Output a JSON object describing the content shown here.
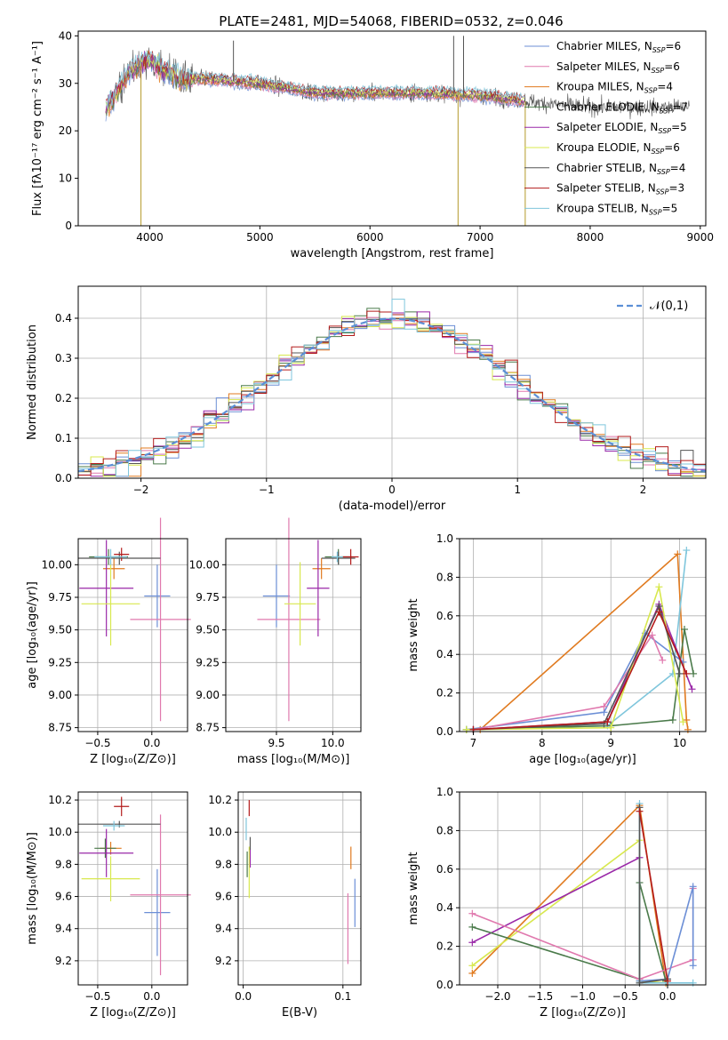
{
  "figure_title": "PLATE=2481, MJD=54068, FIBERID=0532, z=0.046",
  "colors": {
    "cmiles": "#6c8fd6",
    "smiles": "#e079ae",
    "kmiles": "#e07a1f",
    "celodie": "#4a7a4a",
    "selodie": "#9a28a8",
    "kelodie": "#d8e84e",
    "cstelib": "#555555",
    "sstelib": "#b31b1b",
    "kstelib": "#7fc6dc",
    "normal": "#5b8fd6"
  },
  "chart_data": [
    {
      "id": "spectrum",
      "type": "line",
      "xlabel": "wavelength [Angstrom, rest frame]",
      "ylabel": "Flux [fλ10⁻¹⁷ erg cm⁻² s⁻¹ A⁻¹]",
      "xlim": [
        3350,
        9050
      ],
      "ylim": [
        0,
        41
      ],
      "xticks": [
        4000,
        5000,
        6000,
        7000,
        8000,
        9000
      ],
      "yticks": [
        0,
        10,
        20,
        30,
        40
      ],
      "grid": false,
      "legend_position": "upper-right",
      "legend": [
        {
          "label": "Chabrier MILES, N",
          "sub": "SSP",
          "n": "=6",
          "color_key": "cmiles"
        },
        {
          "label": "Salpeter MILES, N",
          "sub": "SSP",
          "n": "=6",
          "color_key": "smiles"
        },
        {
          "label": "Kroupa MILES, N",
          "sub": "SSP",
          "n": "=4",
          "color_key": "kmiles"
        },
        {
          "label": "Chabrier ELODIE, N",
          "sub": "SSP",
          "n": "=7",
          "color_key": "celodie"
        },
        {
          "label": "Salpeter ELODIE, N",
          "sub": "SSP",
          "n": "=5",
          "color_key": "selodie"
        },
        {
          "label": "Kroupa ELODIE, N",
          "sub": "SSP",
          "n": "=6",
          "color_key": "kelodie"
        },
        {
          "label": "Chabrier STELIB, N",
          "sub": "SSP",
          "n": "=4",
          "color_key": "cstelib"
        },
        {
          "label": "Salpeter STELIB, N",
          "sub": "SSP",
          "n": "=3",
          "color_key": "sstelib"
        },
        {
          "label": "Kroupa STELIB, N",
          "sub": "SSP",
          "n": "=5",
          "color_key": "kstelib"
        }
      ],
      "continuum": {
        "wavelength": [
          3620,
          3700,
          3800,
          3900,
          4000,
          4100,
          4300,
          4500,
          5000,
          5500,
          6000,
          6500,
          7000,
          7500,
          8000,
          8500,
          8900
        ],
        "flux": [
          25,
          28,
          32,
          34,
          35,
          33,
          31,
          31,
          30,
          28,
          28,
          28,
          27.5,
          26,
          25,
          25,
          25
        ]
      },
      "model_range": [
        3600,
        7400
      ],
      "spikes": [
        {
          "x": 3920,
          "y": 0
        },
        {
          "x": 6800,
          "y": 0
        },
        {
          "x": 7410,
          "y": 0
        },
        {
          "x": 4760,
          "y": 39
        },
        {
          "x": 6760,
          "y": 40
        },
        {
          "x": 6850,
          "y": 40
        }
      ]
    },
    {
      "id": "residual_hist",
      "type": "histogram",
      "xlabel": "(data-model)/error",
      "ylabel": "Normed distribution",
      "xlim": [
        -2.5,
        2.5
      ],
      "ylim": [
        0,
        0.48
      ],
      "xticks": [
        -2,
        -1,
        0,
        1,
        2
      ],
      "yticks": [
        0,
        0.1,
        0.2,
        0.3,
        0.4
      ],
      "grid": true,
      "bin_width": 0.1,
      "legend": "𝒩(0,1)",
      "legend_position": "upper-right"
    },
    {
      "id": "age_Z",
      "type": "errorbar",
      "xlabel": "Z [log₁₀(Z/Z⊙)]",
      "ylabel": "age  [log₁₀(age/yr)]",
      "xlim": [
        -0.68,
        0.33
      ],
      "ylim": [
        8.72,
        10.2
      ],
      "xticks": [
        -0.5,
        0.0
      ],
      "yticks": [
        8.75,
        9.0,
        9.25,
        9.5,
        9.75,
        10.0
      ],
      "grid": true,
      "points": [
        {
          "color_key": "cmiles",
          "x": 0.05,
          "xerr": 0.12,
          "y": 9.76,
          "yerr": 0.24
        },
        {
          "color_key": "smiles",
          "x": 0.08,
          "xerr": 0.28,
          "y": 9.58,
          "yerr": 0.78
        },
        {
          "color_key": "kmiles",
          "x": -0.35,
          "xerr": 0.1,
          "y": 9.97,
          "yerr": 0.08
        },
        {
          "color_key": "celodie",
          "x": -0.4,
          "xerr": 0.18,
          "y": 10.06,
          "yerr": 0.06
        },
        {
          "color_key": "selodie",
          "x": -0.42,
          "xerr": 0.25,
          "y": 9.82,
          "yerr": 0.37
        },
        {
          "color_key": "kelodie",
          "x": -0.38,
          "xerr": 0.27,
          "y": 9.7,
          "yerr": 0.32
        },
        {
          "color_key": "cstelib",
          "x": -0.3,
          "xerr": 0.38,
          "y": 10.05,
          "yerr": 0.05
        },
        {
          "color_key": "sstelib",
          "x": -0.28,
          "xerr": 0.07,
          "y": 10.08,
          "yerr": 0.05
        },
        {
          "color_key": "kstelib",
          "x": -0.38,
          "xerr": 0.15,
          "y": 10.06,
          "yerr": 0.06
        }
      ]
    },
    {
      "id": "age_mass",
      "type": "errorbar",
      "xlabel": "mass [log₁₀(M/M⊙)]",
      "ylabel": "",
      "xlim": [
        9.05,
        10.25
      ],
      "ylim": [
        8.72,
        10.2
      ],
      "xticks": [
        9.5,
        10.0
      ],
      "yticks": [
        8.75,
        9.0,
        9.25,
        9.5,
        9.75,
        10.0
      ],
      "grid": true,
      "points": [
        {
          "color_key": "cmiles",
          "x": 9.5,
          "xerr": 0.12,
          "y": 9.76,
          "yerr": 0.24
        },
        {
          "color_key": "smiles",
          "x": 9.61,
          "xerr": 0.28,
          "y": 9.58,
          "yerr": 0.78
        },
        {
          "color_key": "kmiles",
          "x": 9.9,
          "xerr": 0.08,
          "y": 9.97,
          "yerr": 0.08
        },
        {
          "color_key": "celodie",
          "x": 10.05,
          "xerr": 0.12,
          "y": 10.06,
          "yerr": 0.06
        },
        {
          "color_key": "selodie",
          "x": 9.87,
          "xerr": 0.1,
          "y": 9.82,
          "yerr": 0.37
        },
        {
          "color_key": "kelodie",
          "x": 9.71,
          "xerr": 0.14,
          "y": 9.7,
          "yerr": 0.32
        },
        {
          "color_key": "cstelib",
          "x": 10.05,
          "xerr": 0.15,
          "y": 10.05,
          "yerr": 0.05
        },
        {
          "color_key": "sstelib",
          "x": 10.16,
          "xerr": 0.07,
          "y": 10.06,
          "yerr": 0.06
        },
        {
          "color_key": "kstelib",
          "x": 10.04,
          "xerr": 0.05,
          "y": 10.06,
          "yerr": 0.04
        }
      ]
    },
    {
      "id": "weight_age",
      "type": "line",
      "xlabel": "age  [log₁₀(age/yr)]",
      "ylabel": "mass weight",
      "xlim": [
        6.8,
        10.38
      ],
      "ylim": [
        0,
        1
      ],
      "xticks": [
        7,
        8,
        9,
        10
      ],
      "yticks": [
        0.0,
        0.2,
        0.4,
        0.6,
        0.8,
        1.0
      ],
      "grid": true,
      "series": [
        {
          "color_key": "kmiles",
          "x": [
            7.1,
            9.97,
            10.1,
            10.12
          ],
          "y": [
            0.01,
            0.92,
            0.06,
            0.01
          ]
        },
        {
          "color_key": "kstelib",
          "x": [
            6.9,
            8.95,
            9.9,
            10.1
          ],
          "y": [
            0.01,
            0.03,
            0.3,
            0.94
          ]
        },
        {
          "color_key": "cmiles",
          "x": [
            6.9,
            8.9,
            9.5,
            10.05
          ],
          "y": [
            0.01,
            0.1,
            0.51,
            0.36
          ]
        },
        {
          "color_key": "smiles",
          "x": [
            7.0,
            8.9,
            9.6,
            9.75
          ],
          "y": [
            0.01,
            0.13,
            0.5,
            0.37
          ]
        },
        {
          "color_key": "celodie",
          "x": [
            6.9,
            9.0,
            9.9,
            10.07,
            10.2
          ],
          "y": [
            0.01,
            0.03,
            0.06,
            0.53,
            0.3
          ]
        },
        {
          "color_key": "selodie",
          "x": [
            7.0,
            8.95,
            9.7,
            10.18
          ],
          "y": [
            0.01,
            0.05,
            0.66,
            0.22
          ]
        },
        {
          "color_key": "kelodie",
          "x": [
            6.9,
            9.0,
            9.7,
            10.05
          ],
          "y": [
            0.01,
            0.02,
            0.75,
            0.05
          ]
        },
        {
          "color_key": "cstelib",
          "x": [
            7.0,
            8.9,
            9.7,
            10.0
          ],
          "y": [
            0.01,
            0.04,
            0.65,
            0.3
          ]
        },
        {
          "color_key": "sstelib",
          "x": [
            7.0,
            8.95,
            9.7,
            10.1
          ],
          "y": [
            0.01,
            0.05,
            0.62,
            0.3
          ]
        }
      ]
    },
    {
      "id": "mass_Z",
      "type": "errorbar",
      "xlabel": "Z [log₁₀(Z/Z⊙)]",
      "ylabel": "mass [log₁₀(M/M⊙)]",
      "xlim": [
        -0.68,
        0.33
      ],
      "ylim": [
        9.05,
        10.25
      ],
      "xticks": [
        -0.5,
        0.0
      ],
      "yticks": [
        9.2,
        9.4,
        9.6,
        9.8,
        10.0,
        10.2
      ],
      "grid": true,
      "points": [
        {
          "color_key": "cmiles",
          "x": 0.05,
          "xerr": 0.12,
          "y": 9.5,
          "yerr": 0.27
        },
        {
          "color_key": "smiles",
          "x": 0.08,
          "xerr": 0.28,
          "y": 9.61,
          "yerr": 0.5
        },
        {
          "color_key": "kmiles",
          "x": -0.38,
          "xerr": 0.1,
          "y": 9.9,
          "yerr": 0.04
        },
        {
          "color_key": "celodie",
          "x": -0.43,
          "xerr": 0.1,
          "y": 9.9,
          "yerr": 0.06
        },
        {
          "color_key": "selodie",
          "x": -0.42,
          "xerr": 0.25,
          "y": 9.87,
          "yerr": 0.15
        },
        {
          "color_key": "kelodie",
          "x": -0.38,
          "xerr": 0.27,
          "y": 9.71,
          "yerr": 0.14
        },
        {
          "color_key": "cstelib",
          "x": -0.3,
          "xerr": 0.38,
          "y": 10.05,
          "yerr": 0.02
        },
        {
          "color_key": "sstelib",
          "x": -0.28,
          "xerr": 0.07,
          "y": 10.16,
          "yerr": 0.06
        },
        {
          "color_key": "kstelib",
          "x": -0.35,
          "xerr": 0.1,
          "y": 10.04,
          "yerr": 0.03
        }
      ]
    },
    {
      "id": "mass_ebv",
      "type": "errorbar",
      "xlabel": "E(B-V)",
      "ylabel": "",
      "xlim": [
        -0.005,
        0.118
      ],
      "ylim": [
        9.05,
        10.25
      ],
      "xticks": [
        0.0,
        0.1
      ],
      "yticks": [
        9.2,
        9.4,
        9.6,
        9.8,
        10.0,
        10.2
      ],
      "grid": true,
      "points": [
        {
          "color_key": "cmiles",
          "x": 0.112,
          "xerr": 0,
          "y": 9.56,
          "yerr": 0.15
        },
        {
          "color_key": "smiles",
          "x": 0.105,
          "xerr": 0,
          "y": 9.4,
          "yerr": 0.22
        },
        {
          "color_key": "kmiles",
          "x": 0.108,
          "xerr": 0,
          "y": 9.84,
          "yerr": 0.07
        },
        {
          "color_key": "celodie",
          "x": 0.004,
          "xerr": 0,
          "y": 9.8,
          "yerr": 0.08
        },
        {
          "color_key": "selodie",
          "x": 0.007,
          "xerr": 0,
          "y": 9.84,
          "yerr": 0.06
        },
        {
          "color_key": "kelodie",
          "x": 0.006,
          "xerr": 0,
          "y": 9.75,
          "yerr": 0.16
        },
        {
          "color_key": "cstelib",
          "x": 0.007,
          "xerr": 0,
          "y": 9.93,
          "yerr": 0.04
        },
        {
          "color_key": "sstelib",
          "x": 0.006,
          "xerr": 0,
          "y": 10.15,
          "yerr": 0.05
        },
        {
          "color_key": "kstelib",
          "x": 0.003,
          "xerr": 0,
          "y": 10.02,
          "yerr": 0.07
        }
      ]
    },
    {
      "id": "weight_Z",
      "type": "line",
      "xlabel": "Z [log₁₀(Z/Z⊙)]",
      "ylabel": "mass weight",
      "xlim": [
        -2.45,
        0.45
      ],
      "ylim": [
        0,
        1
      ],
      "xticks": [
        -2.0,
        -1.5,
        -1.0,
        -0.5,
        0.0
      ],
      "yticks": [
        0.0,
        0.2,
        0.4,
        0.6,
        0.8,
        1.0
      ],
      "grid": true,
      "series": [
        {
          "color_key": "kmiles",
          "x": [
            -2.3,
            -0.33,
            -0.02
          ],
          "y": [
            0.06,
            0.93,
            0.01
          ]
        },
        {
          "color_key": "kelodie",
          "x": [
            -2.3,
            -0.33,
            -0.33,
            0.0
          ],
          "y": [
            0.1,
            0.75,
            0.02,
            0.01
          ]
        },
        {
          "color_key": "selodie",
          "x": [
            -2.3,
            -0.33
          ],
          "y": [
            0.22,
            0.66
          ]
        },
        {
          "color_key": "celodie",
          "x": [
            -2.3,
            -0.33,
            -0.33,
            -0.02
          ],
          "y": [
            0.3,
            0.03,
            0.53,
            0.02
          ]
        },
        {
          "color_key": "smiles",
          "x": [
            -2.3,
            -0.33,
            0.3,
            0.3
          ],
          "y": [
            0.37,
            0.03,
            0.13,
            0.5
          ]
        },
        {
          "color_key": "cmiles",
          "x": [
            -0.33,
            0.0,
            0.3,
            0.3
          ],
          "y": [
            0.02,
            0.03,
            0.51,
            0.1
          ]
        },
        {
          "color_key": "kstelib",
          "x": [
            -0.33,
            -0.33,
            0.3
          ],
          "y": [
            0.94,
            0.01,
            0.01
          ]
        },
        {
          "color_key": "cstelib",
          "x": [
            -0.33,
            -0.33,
            0.0
          ],
          "y": [
            0.92,
            0.01,
            0.03
          ]
        },
        {
          "color_key": "sstelib",
          "x": [
            -0.33,
            0.0
          ],
          "y": [
            0.9,
            0.02
          ]
        }
      ]
    }
  ]
}
